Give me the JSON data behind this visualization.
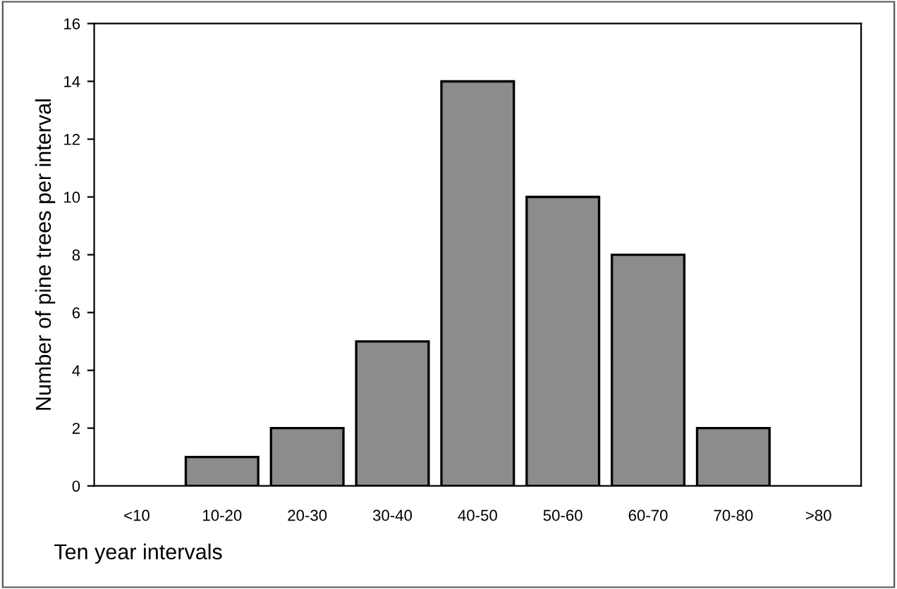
{
  "chart_data": {
    "type": "bar",
    "xlabel": "Ten year intervals",
    "ylabel": "Number of pine trees per interval",
    "categories": [
      "<10",
      "10-20",
      "20-30",
      "30-40",
      "40-50",
      "50-60",
      "60-70",
      "70-80",
      ">80"
    ],
    "values": [
      0,
      1,
      2,
      5,
      14,
      10,
      8,
      2,
      0
    ],
    "color": "#8c8c8c",
    "ylim": [
      0,
      16
    ],
    "yticks": [
      0,
      2,
      4,
      6,
      8,
      10,
      12,
      14,
      16
    ],
    "grid": false
  }
}
